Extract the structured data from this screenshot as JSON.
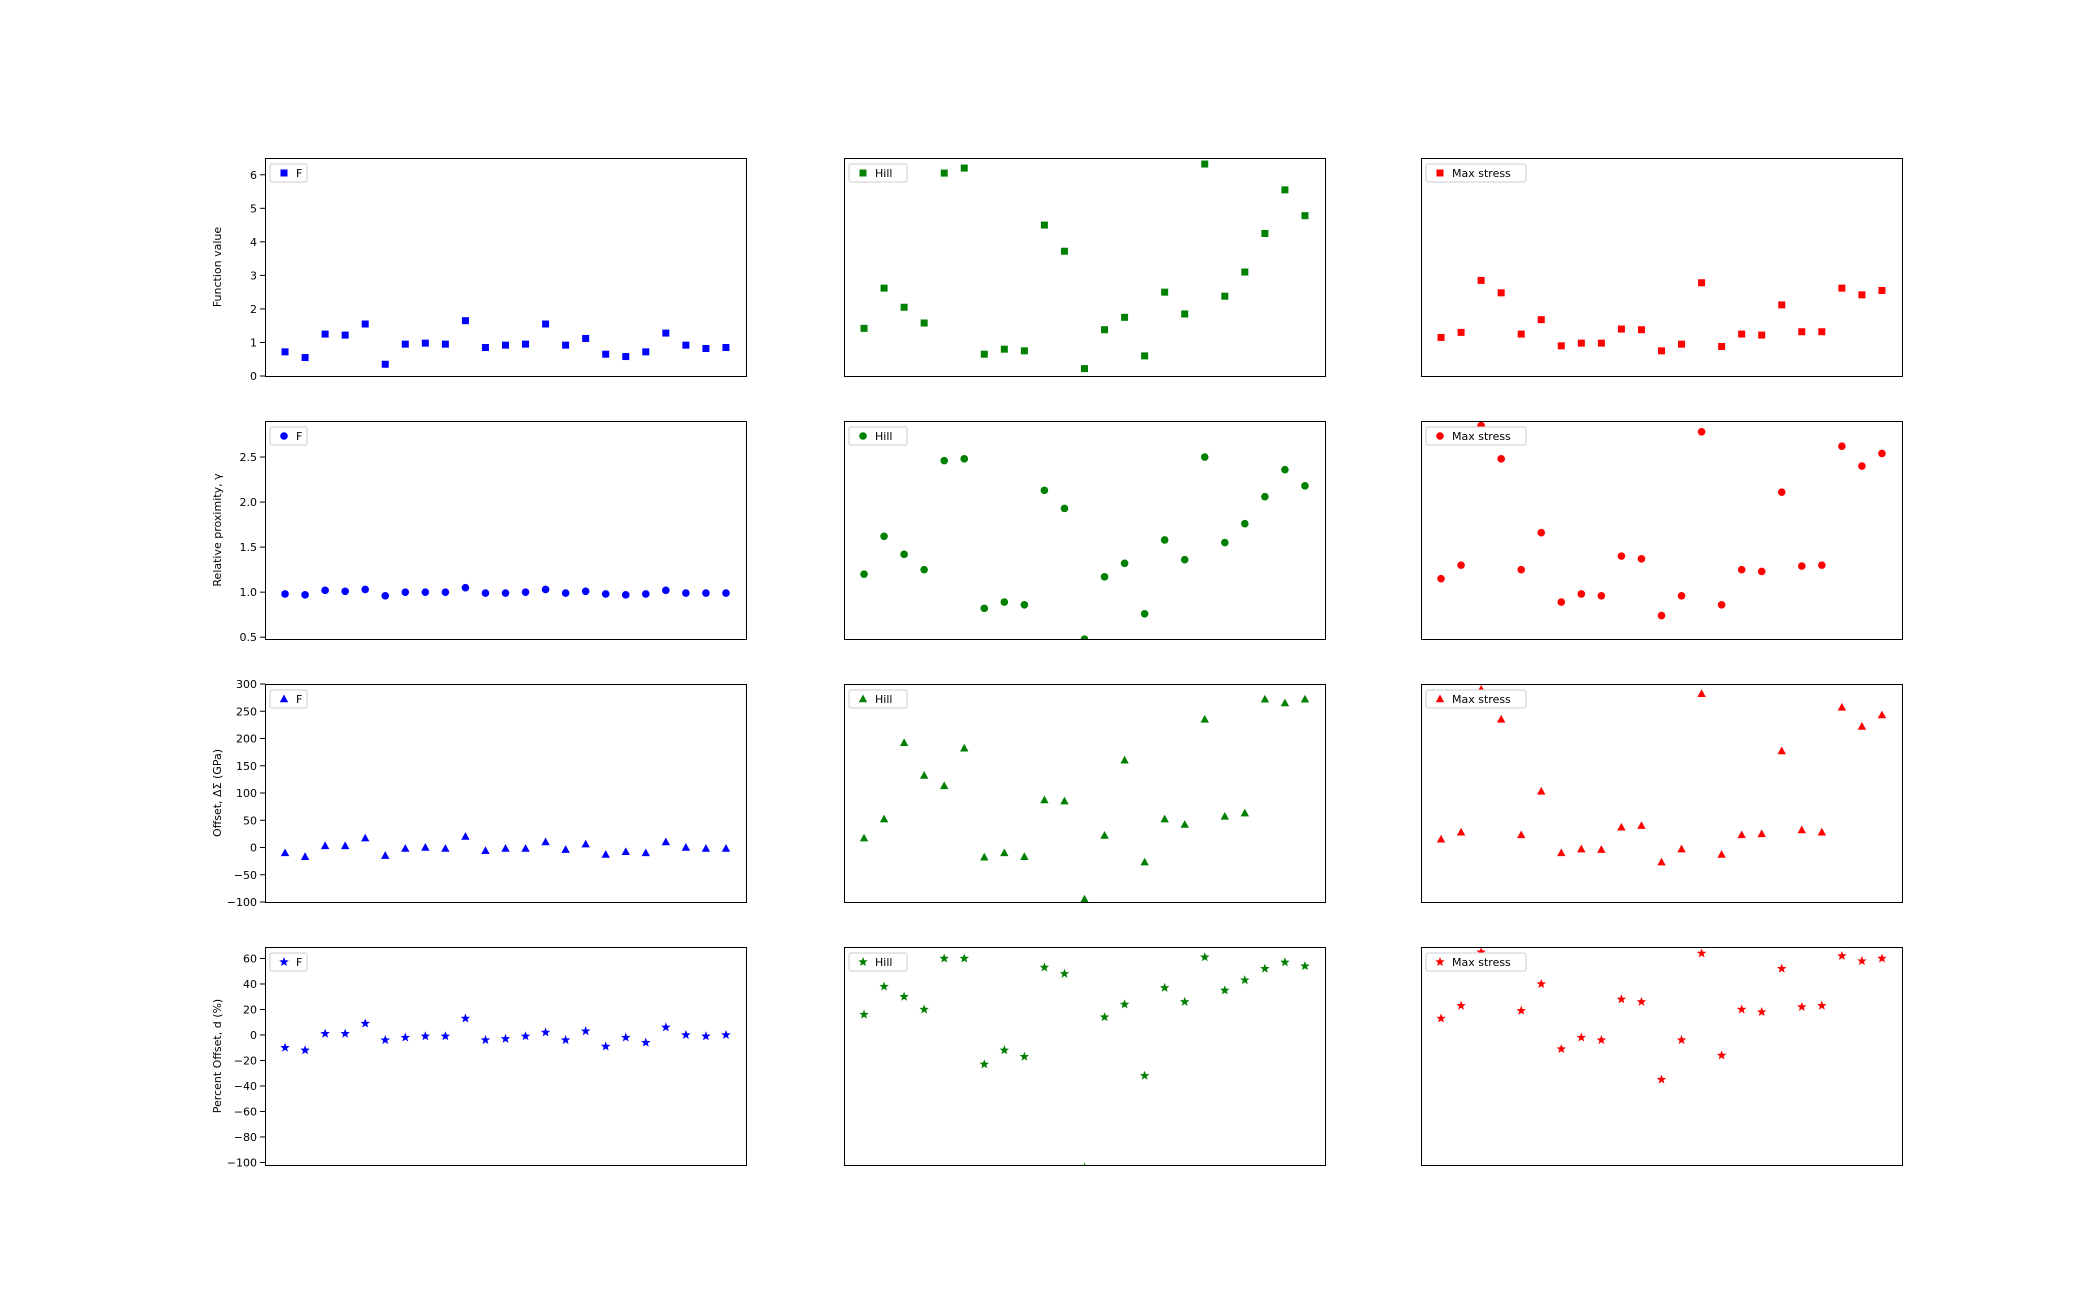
{
  "figure": {
    "rows": [
      {
        "ylabel": "Function value",
        "ylim": [
          0,
          6.5
        ],
        "yticks": [
          0,
          1,
          2,
          3,
          4,
          5,
          6
        ],
        "ytick_labels": [
          "0",
          "1",
          "2",
          "3",
          "4",
          "5",
          "6"
        ],
        "marker": "square"
      },
      {
        "ylabel": "Relative proximity, γ",
        "ylim": [
          0.48,
          2.9
        ],
        "yticks": [
          0.5,
          1.0,
          1.5,
          2.0,
          2.5
        ],
        "ytick_labels": [
          "0.5",
          "1.0",
          "1.5",
          "2.0",
          "2.5"
        ],
        "marker": "circle"
      },
      {
        "ylabel": "Offset, ΔΣ (GPa)",
        "ylim": [
          -100,
          300
        ],
        "yticks": [
          -100,
          -50,
          0,
          50,
          100,
          150,
          200,
          250,
          300
        ],
        "ytick_labels": [
          "−100",
          "−50",
          "0",
          "50",
          "100",
          "150",
          "200",
          "250",
          "300"
        ],
        "marker": "triangle"
      },
      {
        "ylabel": "Percent Offset, d (%)",
        "ylim": [
          -102,
          69
        ],
        "yticks": [
          -100,
          -80,
          -60,
          -40,
          -20,
          0,
          20,
          40,
          60
        ],
        "ytick_labels": [
          "−100",
          "−80",
          "−60",
          "−40",
          "−20",
          "0",
          "20",
          "40",
          "60"
        ],
        "marker": "star"
      }
    ],
    "columns": [
      {
        "name": "F",
        "color": "#0000ff"
      },
      {
        "name": "Hill",
        "color": "#008000"
      },
      {
        "name": "Max stress",
        "color": "#ff0000"
      }
    ]
  },
  "chart_data": [
    {
      "type": "scatter",
      "row": 0,
      "col": 0,
      "legend": "F",
      "ylabel": "Function value",
      "ylim": [
        0,
        6.5
      ],
      "x": [
        1,
        2,
        3,
        4,
        5,
        6,
        7,
        8,
        9,
        10,
        11,
        12,
        13,
        14,
        15,
        16,
        17,
        18,
        19,
        20,
        21,
        22,
        23
      ],
      "y": [
        0.72,
        0.55,
        1.25,
        1.22,
        1.55,
        0.35,
        0.95,
        0.98,
        0.95,
        1.65,
        0.85,
        0.92,
        0.95,
        1.55,
        0.92,
        1.12,
        0.65,
        0.58,
        0.72,
        1.28,
        0.92,
        0.82,
        0.85
      ]
    },
    {
      "type": "scatter",
      "row": 0,
      "col": 1,
      "legend": "Hill",
      "ylim": [
        0,
        6.5
      ],
      "x": [
        1,
        2,
        3,
        4,
        5,
        6,
        7,
        8,
        9,
        10,
        11,
        12,
        13,
        14,
        15,
        16,
        17,
        18,
        19,
        20,
        21,
        22,
        23
      ],
      "y": [
        1.42,
        2.62,
        2.05,
        1.58,
        6.05,
        6.2,
        0.65,
        0.8,
        0.75,
        4.5,
        3.72,
        0.22,
        1.38,
        1.75,
        0.6,
        2.5,
        1.85,
        6.32,
        2.38,
        3.1,
        4.25,
        5.55,
        4.78
      ]
    },
    {
      "type": "scatter",
      "row": 0,
      "col": 2,
      "legend": "Max stress",
      "ylim": [
        0,
        6.5
      ],
      "x": [
        1,
        2,
        3,
        4,
        5,
        6,
        7,
        8,
        9,
        10,
        11,
        12,
        13,
        14,
        15,
        16,
        17,
        18,
        19,
        20,
        21,
        22,
        23
      ],
      "y": [
        1.15,
        1.3,
        2.85,
        2.48,
        1.25,
        1.68,
        0.9,
        0.98,
        0.98,
        1.4,
        1.38,
        0.75,
        0.95,
        2.78,
        0.88,
        1.25,
        1.22,
        2.12,
        1.32,
        1.32,
        2.62,
        2.42,
        2.55
      ]
    },
    {
      "type": "scatter",
      "row": 1,
      "col": 0,
      "legend": "F",
      "ylabel": "Relative proximity, γ",
      "ylim": [
        0.48,
        2.9
      ],
      "x": [
        1,
        2,
        3,
        4,
        5,
        6,
        7,
        8,
        9,
        10,
        11,
        12,
        13,
        14,
        15,
        16,
        17,
        18,
        19,
        20,
        21,
        22,
        23
      ],
      "y": [
        0.98,
        0.97,
        1.02,
        1.01,
        1.03,
        0.96,
        1.0,
        1.0,
        1.0,
        1.05,
        0.99,
        0.99,
        1.0,
        1.03,
        0.99,
        1.01,
        0.98,
        0.97,
        0.98,
        1.02,
        0.99,
        0.99,
        0.99
      ]
    },
    {
      "type": "scatter",
      "row": 1,
      "col": 1,
      "legend": "Hill",
      "ylim": [
        0.48,
        2.9
      ],
      "x": [
        1,
        2,
        3,
        4,
        5,
        6,
        7,
        8,
        9,
        10,
        11,
        12,
        13,
        14,
        15,
        16,
        17,
        18,
        19,
        20,
        21,
        22,
        23
      ],
      "y": [
        1.2,
        1.62,
        1.42,
        1.25,
        2.46,
        2.48,
        0.82,
        0.89,
        0.86,
        2.13,
        1.93,
        0.48,
        1.17,
        1.32,
        0.76,
        1.58,
        1.36,
        2.5,
        1.55,
        1.76,
        2.06,
        2.36,
        2.18
      ]
    },
    {
      "type": "scatter",
      "row": 1,
      "col": 2,
      "legend": "Max stress",
      "ylim": [
        0.48,
        2.9
      ],
      "x": [
        1,
        2,
        3,
        4,
        5,
        6,
        7,
        8,
        9,
        10,
        11,
        12,
        13,
        14,
        15,
        16,
        17,
        18,
        19,
        20,
        21,
        22,
        23
      ],
      "y": [
        1.15,
        1.3,
        2.85,
        2.48,
        1.25,
        1.66,
        0.89,
        0.98,
        0.96,
        1.4,
        1.37,
        0.74,
        0.96,
        2.78,
        0.86,
        1.25,
        1.23,
        2.11,
        1.29,
        1.3,
        2.62,
        2.4,
        2.54
      ]
    },
    {
      "type": "scatter",
      "row": 2,
      "col": 0,
      "legend": "F",
      "ylabel": "Offset, ΔΣ (GPa)",
      "ylim": [
        -100,
        300
      ],
      "x": [
        1,
        2,
        3,
        4,
        5,
        6,
        7,
        8,
        9,
        10,
        11,
        12,
        13,
        14,
        15,
        16,
        17,
        18,
        19,
        20,
        21,
        22,
        23
      ],
      "y": [
        -10,
        -17,
        3,
        3,
        17,
        -15,
        -2,
        0,
        -2,
        20,
        -6,
        -2,
        -2,
        10,
        -4,
        6,
        -13,
        -8,
        -10,
        10,
        0,
        -2,
        -2
      ]
    },
    {
      "type": "scatter",
      "row": 2,
      "col": 1,
      "legend": "Hill",
      "ylim": [
        -100,
        300
      ],
      "x": [
        1,
        2,
        3,
        4,
        5,
        6,
        7,
        8,
        9,
        10,
        11,
        12,
        13,
        14,
        15,
        16,
        17,
        18,
        19,
        20,
        21,
        22,
        23
      ],
      "y": [
        17,
        52,
        192,
        132,
        113,
        182,
        -18,
        -10,
        -17,
        87,
        85,
        -95,
        22,
        160,
        -27,
        52,
        42,
        235,
        57,
        63,
        272,
        265,
        272
      ]
    },
    {
      "type": "scatter",
      "row": 2,
      "col": 2,
      "legend": "Max stress",
      "ylim": [
        -100,
        300
      ],
      "x": [
        1,
        2,
        3,
        4,
        5,
        6,
        7,
        8,
        9,
        10,
        11,
        12,
        13,
        14,
        15,
        16,
        17,
        18,
        19,
        20,
        21,
        22,
        23
      ],
      "y": [
        15,
        28,
        290,
        235,
        23,
        103,
        -10,
        -3,
        -4,
        37,
        40,
        -27,
        -3,
        282,
        -13,
        23,
        25,
        177,
        32,
        28,
        257,
        222,
        243
      ]
    },
    {
      "type": "scatter",
      "row": 3,
      "col": 0,
      "legend": "F",
      "ylabel": "Percent Offset, d (%)",
      "ylim": [
        -102,
        69
      ],
      "x": [
        1,
        2,
        3,
        4,
        5,
        6,
        7,
        8,
        9,
        10,
        11,
        12,
        13,
        14,
        15,
        16,
        17,
        18,
        19,
        20,
        21,
        22,
        23
      ],
      "y": [
        -10,
        -12,
        1,
        1,
        9,
        -4,
        -2,
        -1,
        -1,
        13,
        -4,
        -3,
        -1,
        2,
        -4,
        3,
        -9,
        -2,
        -6,
        6,
        0,
        -1,
        0
      ]
    },
    {
      "type": "scatter",
      "row": 3,
      "col": 1,
      "legend": "Hill",
      "ylim": [
        -102,
        69
      ],
      "x": [
        1,
        2,
        3,
        4,
        5,
        6,
        7,
        8,
        9,
        10,
        11,
        12,
        13,
        14,
        15,
        16,
        17,
        18,
        19,
        20,
        21,
        22,
        23
      ],
      "y": [
        16,
        38,
        30,
        20,
        60,
        60,
        -23,
        -12,
        -17,
        53,
        48,
        -104,
        14,
        24,
        -32,
        37,
        26,
        61,
        35,
        43,
        52,
        57,
        54
      ]
    },
    {
      "type": "scatter",
      "row": 3,
      "col": 2,
      "legend": "Max stress",
      "ylim": [
        -102,
        69
      ],
      "x": [
        1,
        2,
        3,
        4,
        5,
        6,
        7,
        8,
        9,
        10,
        11,
        12,
        13,
        14,
        15,
        16,
        17,
        18,
        19,
        20,
        21,
        22,
        23
      ],
      "y": [
        13,
        23,
        65,
        58,
        19,
        40,
        -11,
        -2,
        -4,
        28,
        26,
        -35,
        -4,
        64,
        -16,
        20,
        18,
        52,
        22,
        23,
        62,
        58,
        60
      ]
    }
  ]
}
